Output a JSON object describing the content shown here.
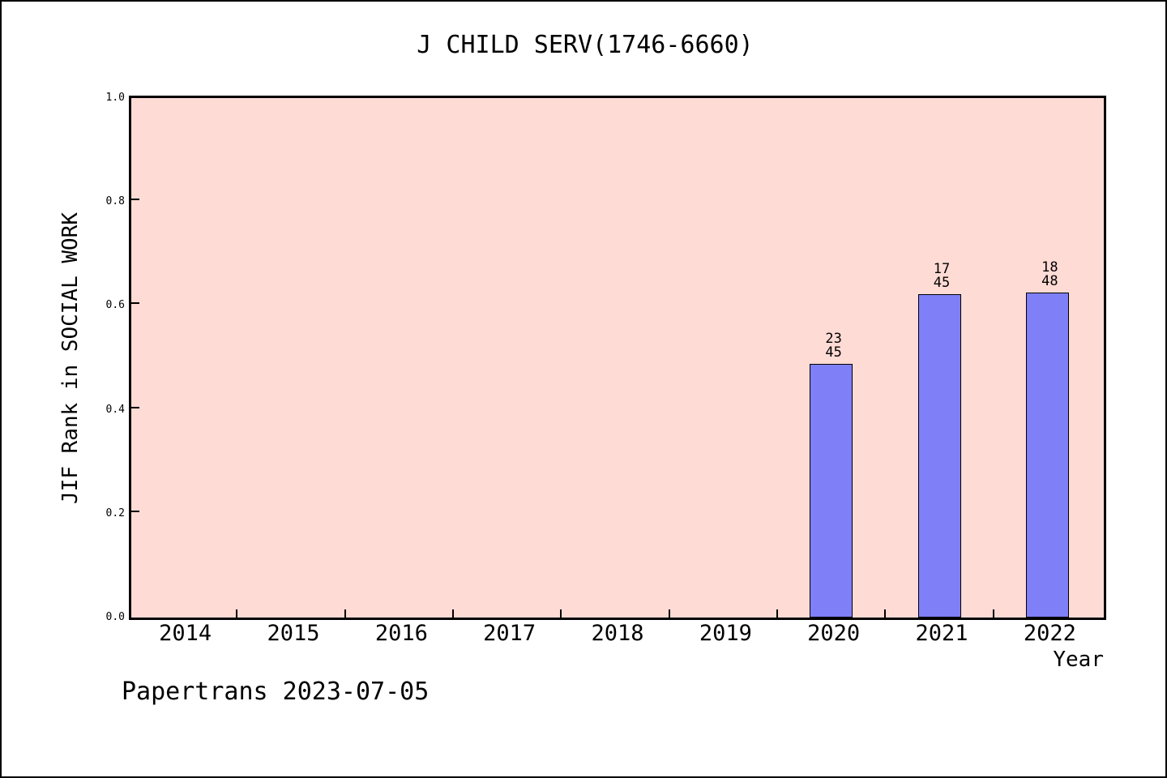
{
  "figure": {
    "footer": "Papertrans 2023-07-05"
  },
  "chart_data": {
    "type": "bar",
    "title": "J CHILD SERV(1746-6660)",
    "xlabel": "Year",
    "ylabel": "JIF Rank in SOCIAL WORK",
    "categories": [
      "2014",
      "2015",
      "2016",
      "2017",
      "2018",
      "2019",
      "2020",
      "2021",
      "2022"
    ],
    "values": [
      null,
      null,
      null,
      null,
      null,
      null,
      0.489,
      0.622,
      0.625
    ],
    "bar_labels": [
      null,
      null,
      null,
      null,
      null,
      null,
      "23/45",
      "17/45",
      "18/48"
    ],
    "ylim": [
      0.0,
      1.0
    ],
    "yticks": [
      0.0,
      0.2,
      0.4,
      0.6,
      0.8,
      1.0
    ],
    "ytick_labels": [
      "0.0",
      "0.2",
      "0.4",
      "0.6",
      "0.8",
      "1.0"
    ],
    "grid": false,
    "legend": "none",
    "colors": {
      "bar_fill": "#7f7ff8",
      "bar_edge": "#000000",
      "plot_bg": "#ffdbd5",
      "figure_bg": "#ffffff",
      "text": "#000000"
    }
  }
}
